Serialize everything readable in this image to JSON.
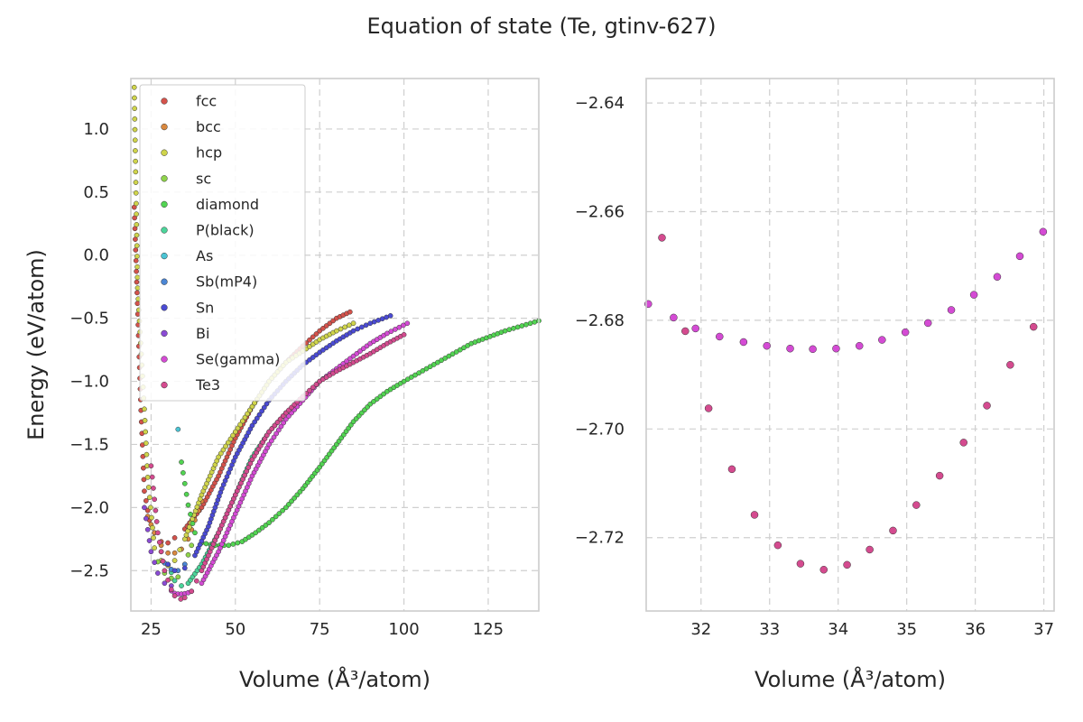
{
  "chart_data": [
    {
      "type": "scatter",
      "title": "Equation of state (Te, gtinv-627)",
      "xlabel": "Volume (Å³/atom)",
      "ylabel": "Energy (eV/atom)",
      "xlim": [
        19,
        140
      ],
      "ylim": [
        -2.82,
        1.4
      ],
      "xticks": [
        25,
        50,
        75,
        100,
        125
      ],
      "yticks": [
        1.0,
        0.5,
        0.0,
        -0.5,
        -1.0,
        -1.5,
        -2.0,
        -2.5
      ],
      "xtick_labels": [
        "25",
        "50",
        "75",
        "100",
        "125"
      ],
      "ytick_labels": [
        "1.0",
        "0.5",
        "0.0",
        "−0.5",
        "−1.0",
        "−1.5",
        "−2.0",
        "−2.5"
      ],
      "grid": true,
      "legend_position": "upper-left",
      "series": [
        {
          "name": "fcc",
          "color": "#d4524b",
          "anchors": [
            [
              20,
              0.38
            ],
            [
              22,
              -1.23
            ],
            [
              23,
              -1.87
            ],
            [
              24.5,
              -2.1
            ],
            [
              26,
              -2.2
            ],
            [
              28,
              -2.27
            ],
            [
              30,
              -2.28
            ],
            [
              32,
              -2.24
            ],
            [
              35,
              -2.17
            ],
            [
              40,
              -2.0
            ],
            [
              45,
              -1.75
            ],
            [
              50,
              -1.45
            ],
            [
              55,
              -1.2
            ],
            [
              60,
              -1.0
            ],
            [
              65,
              -0.85
            ],
            [
              70,
              -0.72
            ],
            [
              75,
              -0.6
            ],
            [
              80,
              -0.5
            ],
            [
              84,
              -0.45
            ]
          ]
        },
        {
          "name": "bcc",
          "color": "#d9883f",
          "anchors": [
            [
              24,
              -2.07
            ],
            [
              26,
              -2.2
            ],
            [
              28,
              -2.3
            ],
            [
              30,
              -2.36
            ],
            [
              32,
              -2.36
            ],
            [
              34,
              -2.33
            ],
            [
              36,
              -2.25
            ],
            [
              38,
              -2.1
            ],
            [
              40,
              -1.95
            ]
          ]
        },
        {
          "name": "hcp",
          "color": "#cfd44b",
          "anchors": [
            [
              20,
              1.33
            ],
            [
              21,
              -0.26
            ],
            [
              23,
              -1.22
            ],
            [
              24,
              -1.76
            ],
            [
              26,
              -2.32
            ],
            [
              28,
              -2.42
            ],
            [
              30,
              -2.46
            ],
            [
              32,
              -2.42
            ],
            [
              35,
              -2.25
            ],
            [
              40,
              -1.9
            ],
            [
              45,
              -1.6
            ],
            [
              50,
              -1.4
            ],
            [
              55,
              -1.2
            ],
            [
              60,
              -1.0
            ],
            [
              65,
              -0.85
            ],
            [
              70,
              -0.76
            ],
            [
              75,
              -0.67
            ],
            [
              80,
              -0.6
            ],
            [
              85,
              -0.54
            ]
          ]
        },
        {
          "name": "sc",
          "color": "#8fd44b",
          "anchors": [
            [
              27,
              -2.43
            ],
            [
              29,
              -2.52
            ],
            [
              31,
              -2.56
            ],
            [
              33,
              -2.55
            ],
            [
              35,
              -2.45
            ],
            [
              37,
              -2.3
            ]
          ]
        },
        {
          "name": "diamond",
          "color": "#52d452",
          "anchors": [
            [
              34,
              -1.64
            ],
            [
              36,
              -1.98
            ],
            [
              38,
              -2.2
            ],
            [
              40,
              -2.28
            ],
            [
              44,
              -2.3
            ],
            [
              48,
              -2.3
            ],
            [
              52,
              -2.27
            ],
            [
              56,
              -2.2
            ],
            [
              60,
              -2.12
            ],
            [
              65,
              -2.0
            ],
            [
              70,
              -1.85
            ],
            [
              75,
              -1.68
            ],
            [
              80,
              -1.5
            ],
            [
              85,
              -1.32
            ],
            [
              90,
              -1.18
            ],
            [
              95,
              -1.08
            ],
            [
              100,
              -1.0
            ],
            [
              110,
              -0.85
            ],
            [
              120,
              -0.7
            ],
            [
              130,
              -0.6
            ],
            [
              140,
              -0.52
            ]
          ]
        },
        {
          "name": "P(black)",
          "color": "#4bd49a",
          "anchors": [
            [
              30,
              -2.45
            ],
            [
              32,
              -2.58
            ],
            [
              34,
              -2.62
            ],
            [
              36,
              -2.6
            ],
            [
              40,
              -2.45
            ],
            [
              45,
              -2.2
            ],
            [
              50,
              -1.9
            ],
            [
              55,
              -1.6
            ],
            [
              60,
              -1.4
            ],
            [
              65,
              -1.25
            ]
          ]
        },
        {
          "name": "As",
          "color": "#4bc4d4",
          "anchors": [
            [
              33,
              -1.38
            ]
          ]
        },
        {
          "name": "Sb(mP4)",
          "color": "#4b86d4",
          "anchors": [
            [
              29,
              -2.44
            ],
            [
              31,
              -2.49
            ],
            [
              33,
              -2.5
            ],
            [
              35,
              -2.45
            ]
          ]
        },
        {
          "name": "Sn",
          "color": "#4b4bd4",
          "anchors": [
            [
              28,
              -2.35
            ],
            [
              30,
              -2.45
            ],
            [
              32,
              -2.5
            ],
            [
              35,
              -2.48
            ],
            [
              38,
              -2.38
            ],
            [
              42,
              -2.15
            ],
            [
              46,
              -1.85
            ],
            [
              50,
              -1.6
            ],
            [
              55,
              -1.35
            ],
            [
              60,
              -1.15
            ],
            [
              65,
              -1.0
            ],
            [
              70,
              -0.87
            ],
            [
              75,
              -0.77
            ],
            [
              80,
              -0.68
            ],
            [
              85,
              -0.6
            ],
            [
              90,
              -0.54
            ],
            [
              96,
              -0.48
            ]
          ]
        },
        {
          "name": "Bi",
          "color": "#8a4bd4",
          "anchors": [
            [
              23,
              -2.0
            ],
            [
              25,
              -2.35
            ],
            [
              27,
              -2.52
            ],
            [
              29,
              -2.6
            ],
            [
              31,
              -2.62
            ]
          ]
        },
        {
          "name": "Se(gamma)",
          "color": "#d44bd4",
          "anchors": [
            [
              31,
              -2.66
            ],
            [
              32,
              -2.68
            ],
            [
              33,
              -2.685
            ],
            [
              34,
              -2.685
            ],
            [
              35,
              -2.682
            ],
            [
              36,
              -2.675
            ],
            [
              37,
              -2.664
            ],
            [
              40,
              -2.6
            ],
            [
              45,
              -2.35
            ],
            [
              50,
              -2.05
            ],
            [
              55,
              -1.75
            ],
            [
              60,
              -1.5
            ],
            [
              65,
              -1.3
            ],
            [
              70,
              -1.15
            ],
            [
              75,
              -1.0
            ],
            [
              80,
              -0.9
            ],
            [
              85,
              -0.8
            ],
            [
              90,
              -0.7
            ],
            [
              95,
              -0.62
            ],
            [
              101,
              -0.54
            ]
          ]
        },
        {
          "name": "Te3",
          "color": "#d44b8f",
          "anchors": [
            [
              25,
              -1.67
            ],
            [
              27,
              -2.2
            ],
            [
              29,
              -2.5
            ],
            [
              31,
              -2.65
            ],
            [
              32,
              -2.7
            ],
            [
              33.8,
              -2.726
            ],
            [
              35,
              -2.715
            ],
            [
              37,
              -2.664
            ],
            [
              40,
              -2.5
            ],
            [
              45,
              -2.2
            ],
            [
              50,
              -1.9
            ],
            [
              55,
              -1.62
            ],
            [
              60,
              -1.4
            ],
            [
              65,
              -1.25
            ],
            [
              70,
              -1.12
            ],
            [
              75,
              -1.0
            ],
            [
              80,
              -0.92
            ],
            [
              85,
              -0.85
            ],
            [
              90,
              -0.78
            ],
            [
              95,
              -0.7
            ],
            [
              100,
              -0.63
            ]
          ]
        }
      ]
    },
    {
      "type": "scatter",
      "xlabel": "Volume (Å³/atom)",
      "xlim": [
        31.2,
        37.15
      ],
      "ylim": [
        -2.7335,
        -2.6355
      ],
      "xticks": [
        32,
        33,
        34,
        35,
        36,
        37
      ],
      "yticks": [
        -2.64,
        -2.66,
        -2.68,
        -2.7,
        -2.72
      ],
      "xtick_labels": [
        "32",
        "33",
        "34",
        "35",
        "36",
        "37"
      ],
      "ytick_labels": [
        "−2.64",
        "−2.66",
        "−2.68",
        "−2.70",
        "−2.72"
      ],
      "grid": true,
      "series": [
        {
          "name": "Se(gamma)",
          "color": "#d44bd4",
          "points": [
            [
              31.23,
              -2.677
            ],
            [
              31.6,
              -2.6795
            ],
            [
              31.92,
              -2.6815
            ],
            [
              32.27,
              -2.683
            ],
            [
              32.62,
              -2.684
            ],
            [
              32.96,
              -2.6847
            ],
            [
              33.3,
              -2.6852
            ],
            [
              33.63,
              -2.6853
            ],
            [
              33.97,
              -2.6852
            ],
            [
              34.31,
              -2.6847
            ],
            [
              34.64,
              -2.6836
            ],
            [
              34.98,
              -2.6822
            ],
            [
              35.31,
              -2.6805
            ],
            [
              35.65,
              -2.6781
            ],
            [
              35.98,
              -2.6753
            ],
            [
              36.32,
              -2.672
            ],
            [
              36.65,
              -2.6682
            ],
            [
              36.99,
              -2.6637
            ]
          ]
        },
        {
          "name": "Te3",
          "color": "#d44b8f",
          "points": [
            [
              31.43,
              -2.6648
            ],
            [
              31.77,
              -2.682
            ],
            [
              32.11,
              -2.6962
            ],
            [
              32.45,
              -2.7074
            ],
            [
              32.78,
              -2.7158
            ],
            [
              33.12,
              -2.7214
            ],
            [
              33.45,
              -2.7248
            ],
            [
              33.79,
              -2.7259
            ],
            [
              34.13,
              -2.725
            ],
            [
              34.46,
              -2.7222
            ],
            [
              34.8,
              -2.7187
            ],
            [
              35.14,
              -2.714
            ],
            [
              35.48,
              -2.7086
            ],
            [
              35.83,
              -2.7025
            ],
            [
              36.17,
              -2.6957
            ],
            [
              36.51,
              -2.6882
            ],
            [
              36.85,
              -2.6812
            ]
          ]
        }
      ]
    }
  ]
}
